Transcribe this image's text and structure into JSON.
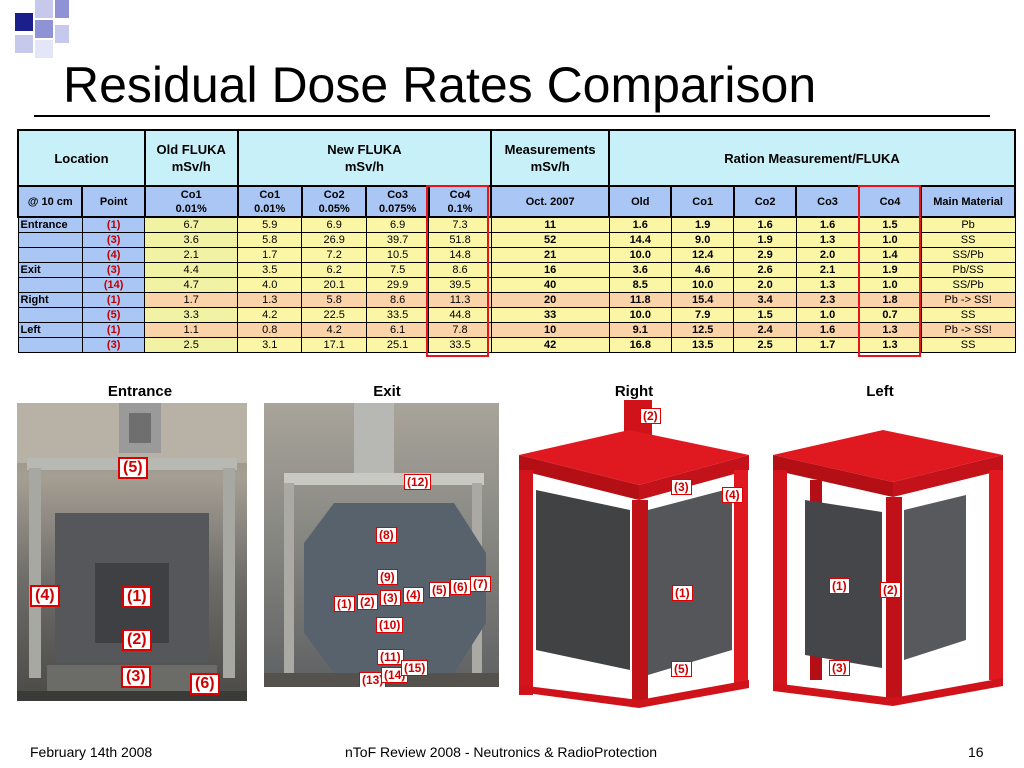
{
  "slide": {
    "title": "Residual Dose Rates Comparison",
    "footer_left": "February 14th 2008",
    "footer_center": "nToF Review 2008 -  Neutronics & RadioProtection",
    "footer_right": "16"
  },
  "table": {
    "header1": {
      "location": "Location",
      "old_fluka_l1": "Old FLUKA",
      "old_fluka_l2": "mSv/h",
      "new_fluka_l1": "New FLUKA",
      "new_fluka_l2": "mSv/h",
      "meas_l1": "Measurements",
      "meas_l2": "mSv/h",
      "ratio": "Ration Measurement/FLUKA"
    },
    "header2": {
      "at10": "@ 10 cm",
      "point": "Point",
      "old_co1_l1": "Co1",
      "old_co1_l2": "0.01%",
      "co1_l1": "Co1",
      "co1_l2": "0.01%",
      "co2_l1": "Co2",
      "co2_l2": "0.05%",
      "co3_l1": "Co3",
      "co3_l2": "0.075%",
      "co4_l1": "Co4",
      "co4_l2": "0.1%",
      "meas": "Oct. 2007",
      "r_old": "Old",
      "r_co1": "Co1",
      "r_co2": "Co2",
      "r_co3": "Co3",
      "r_co4": "Co4",
      "material": "Main Material"
    },
    "rows": [
      {
        "loc": "Entrance",
        "point": "(1)",
        "old": "6.7",
        "co1": "5.9",
        "co2": "6.9",
        "co3": "6.9",
        "co4": "7.3",
        "meas": "11",
        "r_old": "1.6",
        "r_co1": "1.9",
        "r_co2": "1.6",
        "r_co3": "1.6",
        "r_co4": "1.5",
        "mat": "Pb"
      },
      {
        "loc": "",
        "point": "(3)",
        "old": "3.6",
        "co1": "5.8",
        "co2": "26.9",
        "co3": "39.7",
        "co4": "51.8",
        "meas": "52",
        "r_old": "14.4",
        "r_co1": "9.0",
        "r_co2": "1.9",
        "r_co3": "1.3",
        "r_co4": "1.0",
        "mat": "SS"
      },
      {
        "loc": "",
        "point": "(4)",
        "old": "2.1",
        "co1": "1.7",
        "co2": "7.2",
        "co3": "10.5",
        "co4": "14.8",
        "meas": "21",
        "r_old": "10.0",
        "r_co1": "12.4",
        "r_co2": "2.9",
        "r_co3": "2.0",
        "r_co4": "1.4",
        "mat": "SS/Pb"
      },
      {
        "loc": "Exit",
        "point": "(3)",
        "old": "4.4",
        "co1": "3.5",
        "co2": "6.2",
        "co3": "7.5",
        "co4": "8.6",
        "meas": "16",
        "r_old": "3.6",
        "r_co1": "4.6",
        "r_co2": "2.6",
        "r_co3": "2.1",
        "r_co4": "1.9",
        "mat": "Pb/SS"
      },
      {
        "loc": "",
        "point": "(14)",
        "old": "4.7",
        "co1": "4.0",
        "co2": "20.1",
        "co3": "29.9",
        "co4": "39.5",
        "meas": "40",
        "r_old": "8.5",
        "r_co1": "10.0",
        "r_co2": "2.0",
        "r_co3": "1.3",
        "r_co4": "1.0",
        "mat": "SS/Pb"
      },
      {
        "loc": "Right",
        "point": "(1)",
        "old": "1.7",
        "co1": "1.3",
        "co2": "5.8",
        "co3": "8.6",
        "co4": "11.3",
        "meas": "20",
        "r_old": "11.8",
        "r_co1": "15.4",
        "r_co2": "3.4",
        "r_co3": "2.3",
        "r_co4": "1.8",
        "mat": "Pb -> SS!"
      },
      {
        "loc": "",
        "point": "(5)",
        "old": "3.3",
        "co1": "4.2",
        "co2": "22.5",
        "co3": "33.5",
        "co4": "44.8",
        "meas": "33",
        "r_old": "10.0",
        "r_co1": "7.9",
        "r_co2": "1.5",
        "r_co3": "1.0",
        "r_co4": "0.7",
        "mat": "SS"
      },
      {
        "loc": "Left",
        "point": "(1)",
        "old": "1.1",
        "co1": "0.8",
        "co2": "4.2",
        "co3": "6.1",
        "co4": "7.8",
        "meas": "10",
        "r_old": "9.1",
        "r_co1": "12.5",
        "r_co2": "2.4",
        "r_co3": "1.6",
        "r_co4": "1.3",
        "mat": "Pb -> SS!"
      },
      {
        "loc": "",
        "point": "(3)",
        "old": "2.5",
        "co1": "3.1",
        "co2": "17.1",
        "co3": "25.1",
        "co4": "33.5",
        "meas": "42",
        "r_old": "16.8",
        "r_co1": "13.5",
        "r_co2": "2.5",
        "r_co3": "1.7",
        "r_co4": "1.3",
        "mat": "SS"
      }
    ]
  },
  "photos": {
    "entrance": {
      "label": "Entrance",
      "tags": [
        "(5)",
        "(4)",
        "(1)",
        "(2)",
        "(3)",
        "(6)"
      ]
    },
    "exit": {
      "label": "Exit",
      "tags": [
        "(12)",
        "(8)",
        "(9)",
        "(1)",
        "(2)",
        "(3)",
        "(4)",
        "(5)",
        "(6)",
        "(7)",
        "(10)",
        "(11)",
        "(13)",
        "(14)",
        "(15)"
      ]
    },
    "right": {
      "label": "Right",
      "tags": [
        "(2)",
        "(3)",
        "(4)",
        "(1)",
        "(5)"
      ]
    },
    "left": {
      "label": "Left",
      "tags": [
        "(1)",
        "(2)",
        "(3)"
      ]
    }
  },
  "colors": {
    "highlight": "#e8141c",
    "header_cyan": "#c8f0f8",
    "header_blue": "#a9c6f4",
    "cell_yellow": "#fbf6a6",
    "cell_orange": "#fbd3a8",
    "frame_red": "#e0141c"
  }
}
